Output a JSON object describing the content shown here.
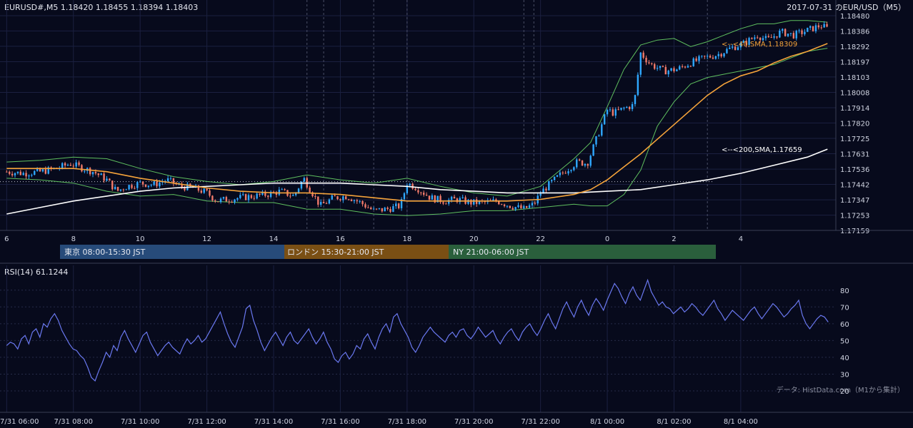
{
  "header": {
    "symbol_info": "EURUSD#,M5 1.18420 1.18455 1.18394 1.18403",
    "title": "2017-07-31 のEUR/USD（M5）"
  },
  "sessions": [
    {
      "label": "東京 08:00-15:30 JST",
      "color": "#274b7a"
    },
    {
      "label": "ロンドン 15:30-21:00 JST",
      "color": "#7a4f14"
    },
    {
      "label": "NY 21:00-06:00 JST",
      "color": "#2a5f3c"
    }
  ],
  "footer": {
    "source": "データ: HistData.com（M1から集計）"
  },
  "colors": {
    "bg": "#070a1c",
    "up": "#2fa8ff",
    "down": "#f07a6a",
    "sma40": "#f5a33a",
    "sma200": "#ffffff",
    "bb": "#5fbf5f",
    "rsi": "#6a78f0"
  },
  "chart_data": [
    {
      "type": "candlestick",
      "title": "2017-07-31 のEUR/USD（M5）",
      "ylim": [
        1.17159,
        1.1848
      ],
      "y_ticks": [
        "1.18480",
        "1.18386",
        "1.18292",
        "1.18197",
        "1.18103",
        "1.18008",
        "1.17914",
        "1.17820",
        "1.17725",
        "1.17631",
        "1.17536",
        "1.17442",
        "1.17347",
        "1.17253",
        "1.17159"
      ],
      "x_ticks": [
        "6",
        "8",
        "10",
        "12",
        "14",
        "16",
        "18",
        "20",
        "22",
        "0",
        "2",
        "4"
      ],
      "last_bar": {
        "open": 1.1842,
        "high": 1.18455,
        "low": 1.18394,
        "close": 1.18403
      },
      "close_path": [
        [
          6.0,
          1.1752
        ],
        [
          6.5,
          1.1751
        ],
        [
          7.0,
          1.1752
        ],
        [
          7.5,
          1.1754
        ],
        [
          7.9,
          1.1757
        ],
        [
          8.3,
          1.1754
        ],
        [
          8.6,
          1.1752
        ],
        [
          9.0,
          1.1747
        ],
        [
          9.3,
          1.174
        ],
        [
          9.6,
          1.1743
        ],
        [
          10.0,
          1.1745
        ],
        [
          10.4,
          1.1744
        ],
        [
          10.8,
          1.1747
        ],
        [
          11.2,
          1.1743
        ],
        [
          11.6,
          1.1742
        ],
        [
          12.0,
          1.1739
        ],
        [
          12.3,
          1.1734
        ],
        [
          12.6,
          1.1735
        ],
        [
          13.0,
          1.1736
        ],
        [
          13.4,
          1.1737
        ],
        [
          13.8,
          1.1738
        ],
        [
          14.2,
          1.174
        ],
        [
          14.6,
          1.1737
        ],
        [
          14.9,
          1.1748
        ],
        [
          15.1,
          1.1741
        ],
        [
          15.4,
          1.1731
        ],
        [
          15.8,
          1.1736
        ],
        [
          16.2,
          1.1737
        ],
        [
          16.6,
          1.1733
        ],
        [
          17.0,
          1.1728
        ],
        [
          17.4,
          1.1729
        ],
        [
          17.8,
          1.1731
        ],
        [
          18.0,
          1.1745
        ],
        [
          18.3,
          1.1742
        ],
        [
          18.7,
          1.1736
        ],
        [
          19.1,
          1.1734
        ],
        [
          19.5,
          1.1735
        ],
        [
          19.9,
          1.1733
        ],
        [
          20.3,
          1.1733
        ],
        [
          20.7,
          1.1734
        ],
        [
          21.1,
          1.1731
        ],
        [
          21.5,
          1.1729
        ],
        [
          21.8,
          1.1732
        ],
        [
          22.0,
          1.1739
        ],
        [
          22.3,
          1.1745
        ],
        [
          22.7,
          1.1752
        ],
        [
          23.1,
          1.1758
        ],
        [
          23.4,
          1.1757
        ],
        [
          23.8,
          1.1779
        ],
        [
          24.0,
          1.179
        ],
        [
          24.2,
          1.1788
        ],
        [
          24.5,
          1.1791
        ],
        [
          24.8,
          1.1793
        ],
        [
          25.0,
          1.1825
        ],
        [
          25.3,
          1.1818
        ],
        [
          25.7,
          1.1814
        ],
        [
          26.1,
          1.1815
        ],
        [
          26.5,
          1.1819
        ],
        [
          26.9,
          1.1822
        ],
        [
          27.3,
          1.1824
        ],
        [
          27.7,
          1.1828
        ],
        [
          28.1,
          1.1831
        ],
        [
          28.5,
          1.1836
        ],
        [
          28.8,
          1.1833
        ],
        [
          29.2,
          1.1838
        ],
        [
          29.6,
          1.1836
        ],
        [
          30.0,
          1.1839
        ],
        [
          30.4,
          1.1842
        ],
        [
          30.6,
          1.184
        ]
      ],
      "sma40": [
        [
          6.0,
          1.1754
        ],
        [
          7.0,
          1.1754
        ],
        [
          8.0,
          1.1754
        ],
        [
          9.0,
          1.1752
        ],
        [
          10.0,
          1.1748
        ],
        [
          11.0,
          1.1745
        ],
        [
          12.0,
          1.1742
        ],
        [
          13.0,
          1.174
        ],
        [
          14.0,
          1.1739
        ],
        [
          15.0,
          1.1739
        ],
        [
          16.0,
          1.1738
        ],
        [
          17.0,
          1.1736
        ],
        [
          18.0,
          1.1734
        ],
        [
          19.0,
          1.1734
        ],
        [
          20.0,
          1.1734
        ],
        [
          21.0,
          1.1734
        ],
        [
          22.0,
          1.1735
        ],
        [
          23.0,
          1.1738
        ],
        [
          23.5,
          1.1741
        ],
        [
          24.0,
          1.1747
        ],
        [
          24.5,
          1.1755
        ],
        [
          25.0,
          1.1763
        ],
        [
          25.5,
          1.1772
        ],
        [
          26.0,
          1.1781
        ],
        [
          26.5,
          1.179
        ],
        [
          27.0,
          1.1799
        ],
        [
          27.5,
          1.1806
        ],
        [
          28.0,
          1.1811
        ],
        [
          28.5,
          1.1814
        ],
        [
          29.0,
          1.1819
        ],
        [
          29.5,
          1.1823
        ],
        [
          30.0,
          1.1826
        ],
        [
          30.6,
          1.18309
        ]
      ],
      "sma200": [
        [
          6.0,
          1.1726
        ],
        [
          7.0,
          1.173
        ],
        [
          8.0,
          1.1734
        ],
        [
          9.0,
          1.1737
        ],
        [
          10.0,
          1.174
        ],
        [
          11.0,
          1.1742
        ],
        [
          12.0,
          1.1743
        ],
        [
          13.0,
          1.1744
        ],
        [
          14.0,
          1.1745
        ],
        [
          15.0,
          1.1745
        ],
        [
          16.0,
          1.1745
        ],
        [
          17.0,
          1.1744
        ],
        [
          18.0,
          1.1743
        ],
        [
          19.0,
          1.1741
        ],
        [
          20.0,
          1.174
        ],
        [
          21.0,
          1.1739
        ],
        [
          22.0,
          1.1739
        ],
        [
          23.0,
          1.1739
        ],
        [
          24.0,
          1.174
        ],
        [
          25.0,
          1.1741
        ],
        [
          26.0,
          1.1744
        ],
        [
          27.0,
          1.1747
        ],
        [
          28.0,
          1.1751
        ],
        [
          29.0,
          1.1756
        ],
        [
          30.0,
          1.1761
        ],
        [
          30.6,
          1.17659
        ]
      ],
      "bb_upper": [
        [
          6.0,
          1.1758
        ],
        [
          7.0,
          1.1759
        ],
        [
          8.0,
          1.1761
        ],
        [
          9.0,
          1.176
        ],
        [
          10.0,
          1.1754
        ],
        [
          11.0,
          1.1749
        ],
        [
          12.0,
          1.1746
        ],
        [
          13.0,
          1.1744
        ],
        [
          14.0,
          1.1746
        ],
        [
          15.0,
          1.175
        ],
        [
          16.0,
          1.1747
        ],
        [
          17.0,
          1.1745
        ],
        [
          18.0,
          1.1748
        ],
        [
          19.0,
          1.1743
        ],
        [
          20.0,
          1.1739
        ],
        [
          21.0,
          1.1737
        ],
        [
          22.0,
          1.1743
        ],
        [
          23.0,
          1.176
        ],
        [
          23.5,
          1.177
        ],
        [
          24.0,
          1.1792
        ],
        [
          24.5,
          1.1815
        ],
        [
          25.0,
          1.183
        ],
        [
          25.5,
          1.1833
        ],
        [
          26.0,
          1.1834
        ],
        [
          26.5,
          1.1829
        ],
        [
          27.0,
          1.1832
        ],
        [
          27.5,
          1.1836
        ],
        [
          28.0,
          1.184
        ],
        [
          28.5,
          1.1843
        ],
        [
          29.0,
          1.1843
        ],
        [
          29.5,
          1.1845
        ],
        [
          30.0,
          1.1845
        ],
        [
          30.6,
          1.1844
        ]
      ],
      "bb_lower": [
        [
          6.0,
          1.1748
        ],
        [
          7.0,
          1.1747
        ],
        [
          8.0,
          1.1745
        ],
        [
          9.0,
          1.174
        ],
        [
          10.0,
          1.1737
        ],
        [
          11.0,
          1.1738
        ],
        [
          12.0,
          1.1734
        ],
        [
          13.0,
          1.1733
        ],
        [
          14.0,
          1.1733
        ],
        [
          15.0,
          1.1729
        ],
        [
          16.0,
          1.1729
        ],
        [
          17.0,
          1.1726
        ],
        [
          18.0,
          1.1725
        ],
        [
          19.0,
          1.1726
        ],
        [
          20.0,
          1.1728
        ],
        [
          21.0,
          1.1728
        ],
        [
          22.0,
          1.173
        ],
        [
          23.0,
          1.1732
        ],
        [
          23.5,
          1.1731
        ],
        [
          24.0,
          1.1731
        ],
        [
          24.5,
          1.1738
        ],
        [
          25.0,
          1.1753
        ],
        [
          25.5,
          1.178
        ],
        [
          26.0,
          1.1795
        ],
        [
          26.5,
          1.1806
        ],
        [
          27.0,
          1.181
        ],
        [
          27.5,
          1.1812
        ],
        [
          28.0,
          1.1814
        ],
        [
          28.5,
          1.1816
        ],
        [
          29.0,
          1.1818
        ],
        [
          29.5,
          1.1822
        ],
        [
          30.0,
          1.1826
        ],
        [
          30.6,
          1.1828
        ]
      ],
      "reference_line": 1.17459,
      "annotations": [
        {
          "text": "<--<40,SMA,1.18309",
          "y": 1.18309,
          "color": "#f5a33a"
        },
        {
          "text": "<--<200,SMA,1.17659",
          "y": 1.17659,
          "color": "#ffffff"
        }
      ]
    },
    {
      "type": "line",
      "title": "RSI(14) 61.1244",
      "ylim": [
        20,
        85
      ],
      "y_ticks": [
        20,
        30,
        40,
        50,
        60,
        70,
        80
      ],
      "values": [
        47,
        49,
        48,
        45,
        51,
        53,
        48,
        55,
        57,
        52,
        60,
        58,
        63,
        66,
        62,
        56,
        52,
        48,
        45,
        44,
        41,
        39,
        34,
        28,
        26,
        32,
        37,
        43,
        40,
        47,
        44,
        52,
        56,
        51,
        47,
        43,
        48,
        53,
        55,
        49,
        45,
        41,
        44,
        47,
        49,
        46,
        44,
        42,
        47,
        51,
        48,
        50,
        53,
        49,
        51,
        55,
        59,
        63,
        67,
        60,
        54,
        49,
        46,
        52,
        58,
        69,
        71,
        62,
        56,
        49,
        44,
        48,
        52,
        55,
        51,
        47,
        52,
        55,
        50,
        48,
        51,
        54,
        57,
        52,
        48,
        51,
        55,
        49,
        45,
        39,
        37,
        41,
        43,
        39,
        42,
        47,
        45,
        51,
        54,
        49,
        45,
        52,
        57,
        60,
        55,
        64,
        66,
        60,
        56,
        52,
        46,
        43,
        47,
        52,
        55,
        58,
        55,
        53,
        51,
        49,
        53,
        55,
        52,
        56,
        57,
        53,
        51,
        54,
        58,
        55,
        52,
        54,
        56,
        51,
        48,
        52,
        55,
        57,
        53,
        50,
        55,
        58,
        60,
        56,
        53,
        57,
        62,
        66,
        61,
        57,
        63,
        69,
        73,
        68,
        64,
        70,
        74,
        69,
        65,
        71,
        75,
        72,
        68,
        74,
        79,
        84,
        81,
        76,
        72,
        78,
        82,
        77,
        74,
        80,
        86,
        79,
        75,
        71,
        73,
        70,
        69,
        66,
        68,
        70,
        67,
        69,
        72,
        70,
        67,
        65,
        68,
        71,
        74,
        69,
        66,
        62,
        65,
        68,
        66,
        64,
        62,
        65,
        68,
        70,
        66,
        63,
        66,
        69,
        72,
        70,
        67,
        64,
        66,
        69,
        71,
        74,
        65,
        60,
        57,
        60,
        63,
        65,
        64,
        61
      ]
    }
  ],
  "rsi_axis_time_labels": [
    "7/31 06:00",
    "7/31 08:00",
    "7/31 10:00",
    "7/31 12:00",
    "7/31 14:00",
    "7/31 16:00",
    "7/31 18:00",
    "7/31 20:00",
    "7/31 22:00",
    "8/1 00:00",
    "8/1 02:00",
    "8/1 04:00"
  ]
}
